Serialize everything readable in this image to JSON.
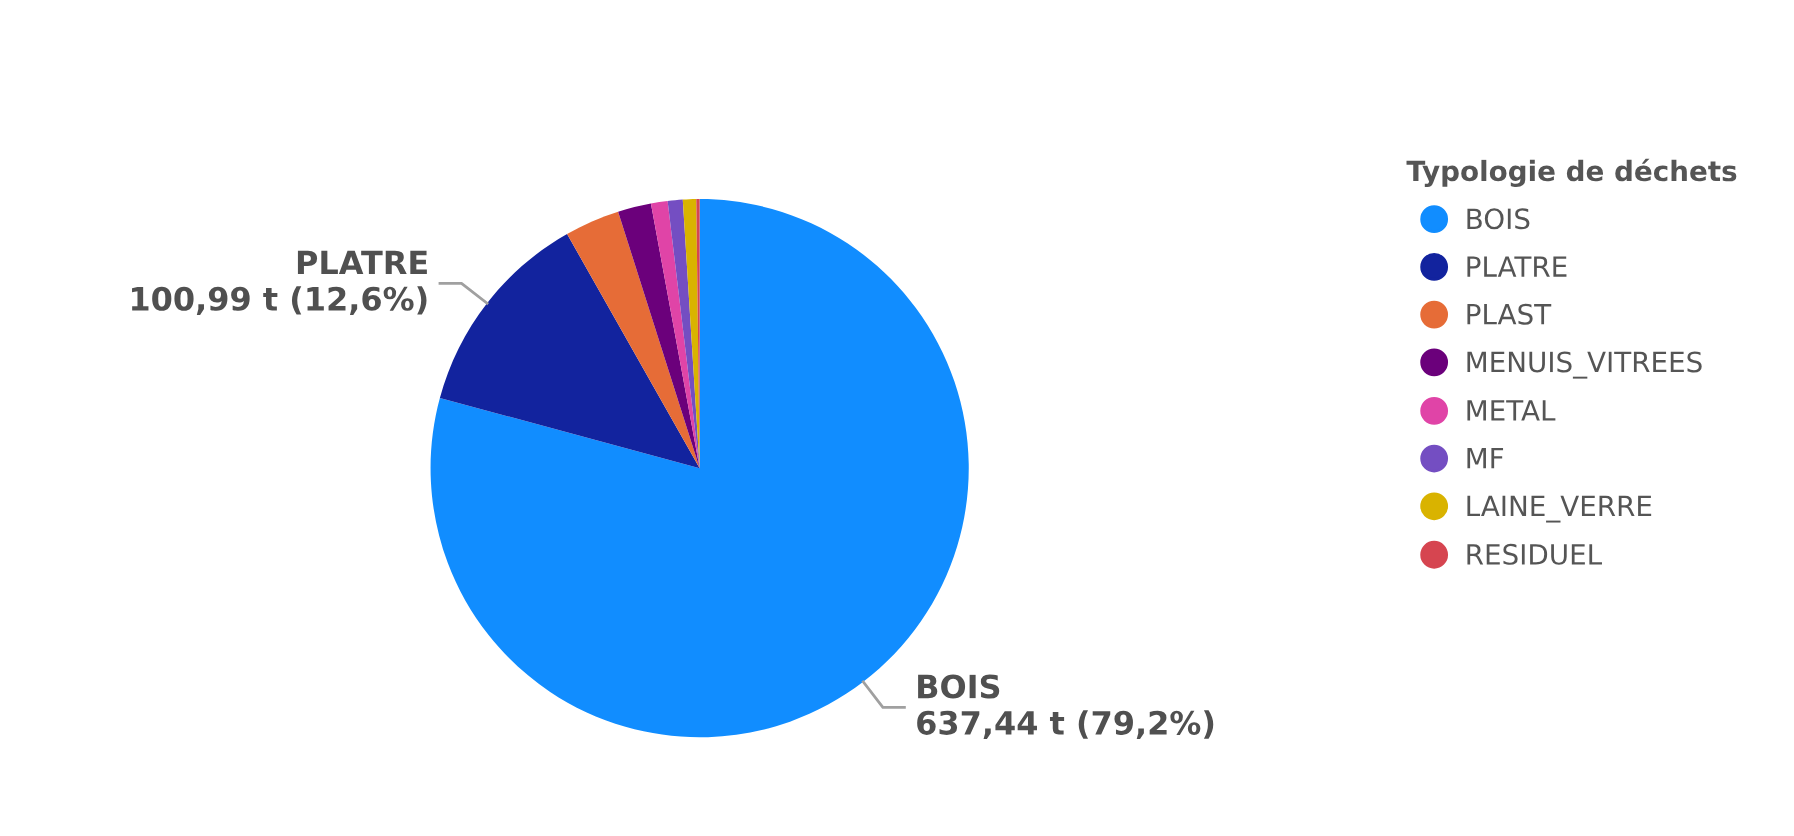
{
  "chart_data": {
    "type": "pie",
    "legend_title": "Typologie de déchets",
    "legend": "right",
    "categories": [
      "BOIS",
      "PLATRE",
      "PLAST",
      "MENUIS_VITREES",
      "METAL",
      "MF",
      "LAINE_VERRE",
      "RESIDUEL"
    ],
    "values": [
      79.2,
      12.6,
      3.3,
      2.0,
      1.0,
      0.9,
      0.8,
      0.2
    ],
    "value_labels": [
      "637,44 t (79,2%)",
      "100,99 t (12,6%)",
      null,
      null,
      null,
      null,
      null,
      null
    ],
    "colors": [
      "#118dff",
      "#12239e",
      "#e66c37",
      "#6b007b",
      "#e044a7",
      "#744ec2",
      "#d9b300",
      "#d64550"
    ]
  }
}
